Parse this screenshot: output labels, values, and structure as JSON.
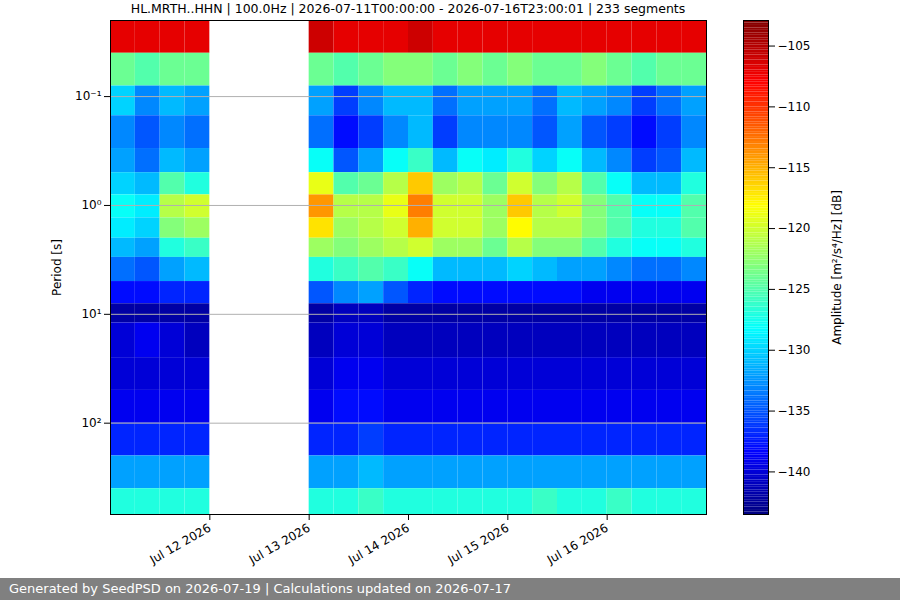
{
  "chart_data": {
    "type": "heatmap",
    "title": "HL.MRTH..HHN | 100.0Hz | 2026-07-11T00:00:00 - 2026-07-16T23:00:01 | 233 segments",
    "footer": "Generated by SeedPSD on 2026-07-19 | Calculations updated on 2026-07-17",
    "ylabel": "Period [s]",
    "colorbar_label": "Amplitude [m²/s⁴/Hz] [dB]",
    "log": "y",
    "grid": true,
    "xlim": [
      "2026-07-11T00:00",
      "2026-07-17T00:00"
    ],
    "xticks": [
      {
        "value": "2026-07-12T00:00",
        "label": "Jul 12 2026"
      },
      {
        "value": "2026-07-13T00:00",
        "label": "Jul 13 2026"
      },
      {
        "value": "2026-07-14T00:00",
        "label": "Jul 14 2026"
      },
      {
        "value": "2026-07-15T00:00",
        "label": "Jul 15 2026"
      },
      {
        "value": "2026-07-16T00:00",
        "label": "Jul 16 2026"
      }
    ],
    "ylim": [
      0.02,
      690
    ],
    "yticks": [
      {
        "value": 0.1,
        "label": "10⁻¹"
      },
      {
        "value": 1,
        "label": "10⁰"
      },
      {
        "value": 10,
        "label": "10¹"
      },
      {
        "value": 100,
        "label": "10²"
      }
    ],
    "x_edges": [
      "2026-07-11T00:00",
      "2026-07-11T06:00",
      "2026-07-11T12:00",
      "2026-07-11T18:00",
      "2026-07-12T00:00",
      "2026-07-12T06:00",
      "2026-07-12T12:00",
      "2026-07-12T18:00",
      "2026-07-13T00:00",
      "2026-07-13T06:00",
      "2026-07-13T12:00",
      "2026-07-13T18:00",
      "2026-07-14T00:00",
      "2026-07-14T06:00",
      "2026-07-14T12:00",
      "2026-07-14T18:00",
      "2026-07-15T00:00",
      "2026-07-15T06:00",
      "2026-07-15T12:00",
      "2026-07-15T18:00",
      "2026-07-16T00:00",
      "2026-07-16T06:00",
      "2026-07-16T12:00",
      "2026-07-16T18:00",
      "2026-07-17T00:00"
    ],
    "y_edges": [
      0.02,
      0.04,
      0.08,
      0.15,
      0.3,
      0.5,
      0.8,
      1.3,
      2,
      3,
      5,
      8,
      12,
      25,
      50,
      100,
      200,
      400,
      690
    ],
    "values": [
      [
        -107,
        -107,
        -107,
        -107,
        null,
        null,
        null,
        null,
        -106,
        -107,
        -107,
        -107,
        -106,
        -107,
        -107,
        -107,
        -107,
        -107,
        -107,
        -107,
        -107,
        -107,
        -107,
        -107
      ],
      [
        -124,
        -125,
        -124,
        -124,
        null,
        null,
        null,
        null,
        -124,
        -125,
        -124,
        -123,
        -123,
        -124,
        -123,
        -124,
        -123,
        -124,
        -124,
        -123,
        -124,
        -125,
        -124,
        -124
      ],
      [
        -130,
        -133,
        -131,
        -132,
        null,
        null,
        null,
        null,
        -132,
        -136,
        -133,
        -131,
        -131,
        -134,
        -132,
        -132,
        -132,
        -134,
        -131,
        -132,
        -133,
        -136,
        -134,
        -132
      ],
      [
        -133,
        -135,
        -133,
        -134,
        null,
        null,
        null,
        null,
        -134,
        -138,
        -136,
        -133,
        -131,
        -136,
        -133,
        -133,
        -133,
        -135,
        -132,
        -135,
        -136,
        -138,
        -136,
        -133
      ],
      [
        -132,
        -134,
        -131,
        -132,
        null,
        null,
        null,
        null,
        -128,
        -135,
        -132,
        -128,
        -126,
        -131,
        -128,
        -129,
        -127,
        -130,
        -128,
        -131,
        -133,
        -136,
        -135,
        -131
      ],
      [
        -130,
        -131,
        -125,
        -127,
        null,
        null,
        null,
        null,
        -119,
        -125,
        -124,
        -121,
        -116,
        -122,
        -121,
        -124,
        -120,
        -123,
        -121,
        -125,
        -128,
        -131,
        -131,
        -127
      ],
      [
        -128,
        -129,
        -121,
        -120,
        null,
        null,
        null,
        null,
        -114,
        -121,
        -121,
        -119,
        -113,
        -120,
        -120,
        -122,
        -116,
        -121,
        -120,
        -123,
        -125,
        -128,
        -128,
        -125
      ],
      [
        -129,
        -130,
        -123,
        -122,
        null,
        null,
        null,
        null,
        -117,
        -122,
        -121,
        -120,
        -115,
        -120,
        -120,
        -122,
        -118,
        -121,
        -121,
        -123,
        -125,
        -127,
        -127,
        -125
      ],
      [
        -131,
        -132,
        -127,
        -126,
        null,
        null,
        null,
        null,
        -122,
        -123,
        -122,
        -121,
        -120,
        -122,
        -122,
        -124,
        -121,
        -123,
        -123,
        -125,
        -127,
        -128,
        -128,
        -127
      ],
      [
        -134,
        -135,
        -132,
        -131,
        null,
        null,
        null,
        null,
        -127,
        -126,
        -125,
        -126,
        -128,
        -131,
        -131,
        -131,
        -130,
        -131,
        -132,
        -132,
        -133,
        -134,
        -134,
        -133
      ],
      [
        -138,
        -138,
        -137,
        -137,
        null,
        null,
        null,
        null,
        -135,
        -133,
        -132,
        -135,
        -137,
        -138,
        -138,
        -138,
        -138,
        -138,
        -138,
        -139,
        -139,
        -139,
        -139,
        -139
      ],
      [
        -142,
        -142,
        -142,
        -142,
        null,
        null,
        null,
        null,
        -142,
        -141,
        -141,
        -142,
        -142,
        -142,
        -142,
        -142,
        -142,
        -142,
        -142,
        -142,
        -142,
        -142,
        -142,
        -142
      ],
      [
        -140,
        -139,
        -140,
        -141,
        null,
        null,
        null,
        null,
        -141,
        -140,
        -140,
        -141,
        -141,
        -141,
        -141,
        -141,
        -141,
        -141,
        -141,
        -141,
        -141,
        -141,
        -141,
        -141
      ],
      [
        -140,
        -140,
        -140,
        -140,
        null,
        null,
        null,
        null,
        -140,
        -139,
        -139,
        -140,
        -140,
        -140,
        -140,
        -140,
        -140,
        -140,
        -140,
        -140,
        -140,
        -140,
        -140,
        -140
      ],
      [
        -139,
        -139,
        -139,
        -139,
        null,
        null,
        null,
        null,
        -139,
        -138,
        -138,
        -139,
        -139,
        -139,
        -139,
        -139,
        -139,
        -139,
        -139,
        -139,
        -139,
        -139,
        -139,
        -139
      ],
      [
        -137,
        -137,
        -137,
        -137,
        null,
        null,
        null,
        null,
        -137,
        -137,
        -136,
        -137,
        -137,
        -137,
        -137,
        -137,
        -137,
        -137,
        -137,
        -137,
        -137,
        -137,
        -137,
        -137
      ],
      [
        -132,
        -132,
        -132,
        -132,
        null,
        null,
        null,
        null,
        -132,
        -132,
        -131,
        -132,
        -132,
        -132,
        -132,
        -132,
        -132,
        -132,
        -132,
        -132,
        -132,
        -132,
        -132,
        -132
      ],
      [
        -127,
        -127,
        -127,
        -127,
        null,
        null,
        null,
        null,
        -127,
        -127,
        -126,
        -127,
        -127,
        -127,
        -127,
        -127,
        -127,
        -126,
        -127,
        -127,
        -126,
        -127,
        -127,
        -127
      ]
    ],
    "colorbar_lim": [
      -143.5,
      -102.9
    ],
    "colorbar_ticks": [
      -140,
      -135,
      -130,
      -125,
      -120,
      -115,
      -110,
      -105
    ]
  }
}
